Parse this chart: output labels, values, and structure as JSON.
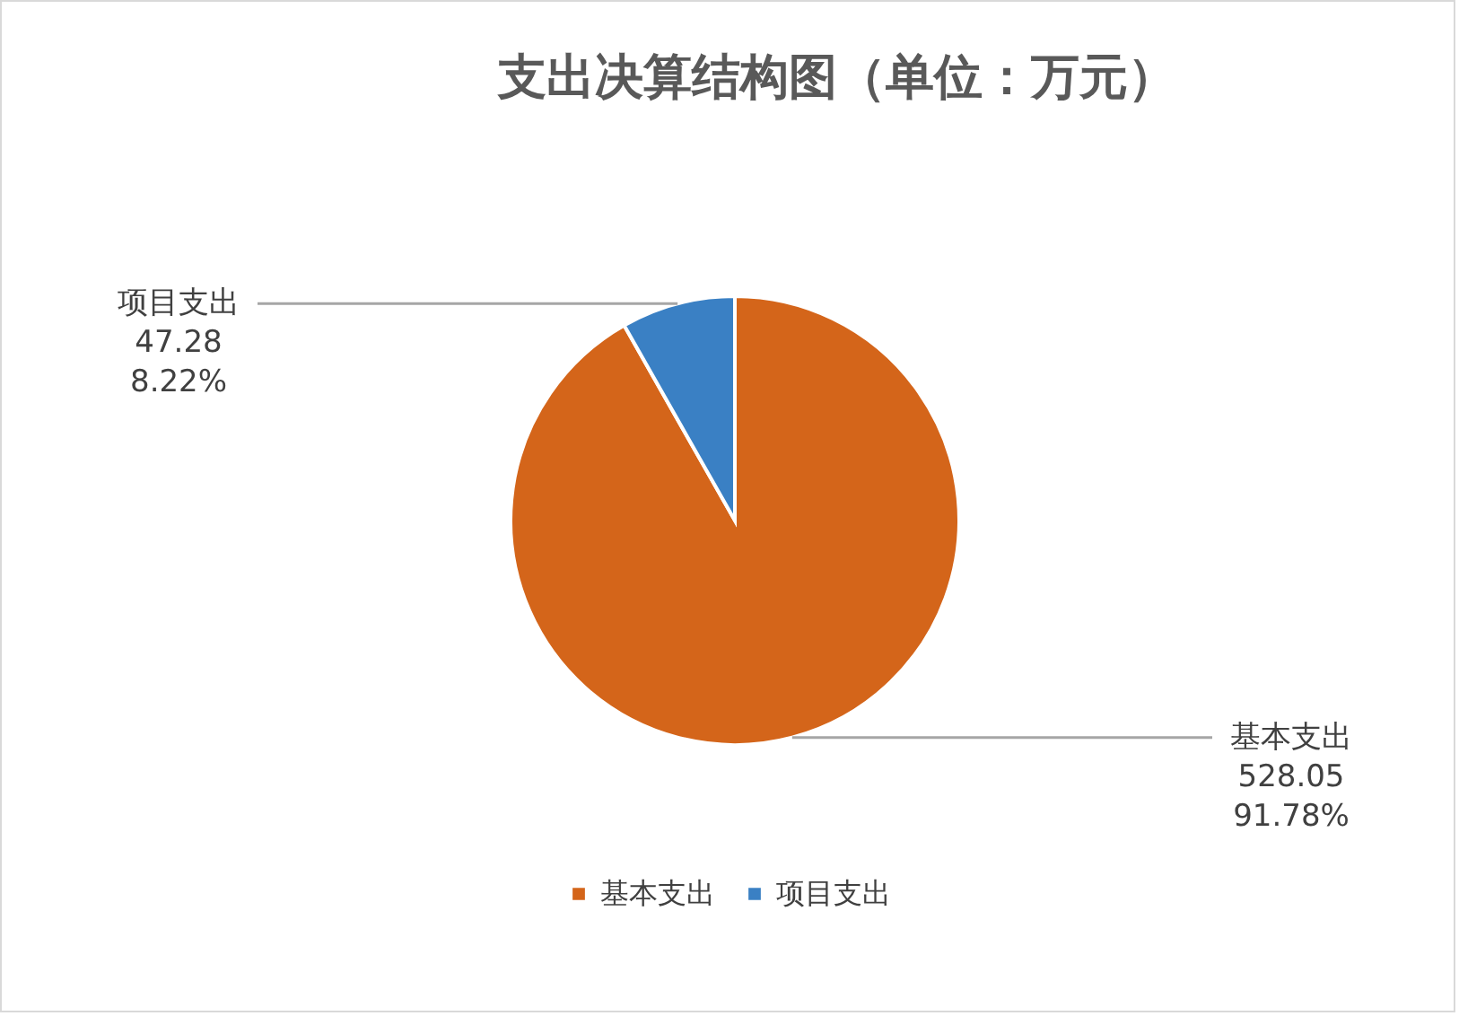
{
  "chart_data": {
    "type": "pie",
    "title": "支出决算结构图（单位：万元）",
    "categories": [
      "基本支出",
      "项目支出"
    ],
    "values": [
      528.05,
      47.28
    ],
    "colors": [
      "#d4651a",
      "#3a80c4"
    ],
    "value_labels": [
      "528.05\n91.78%",
      "47.28\n8.22%"
    ],
    "legend": "bottom"
  }
}
